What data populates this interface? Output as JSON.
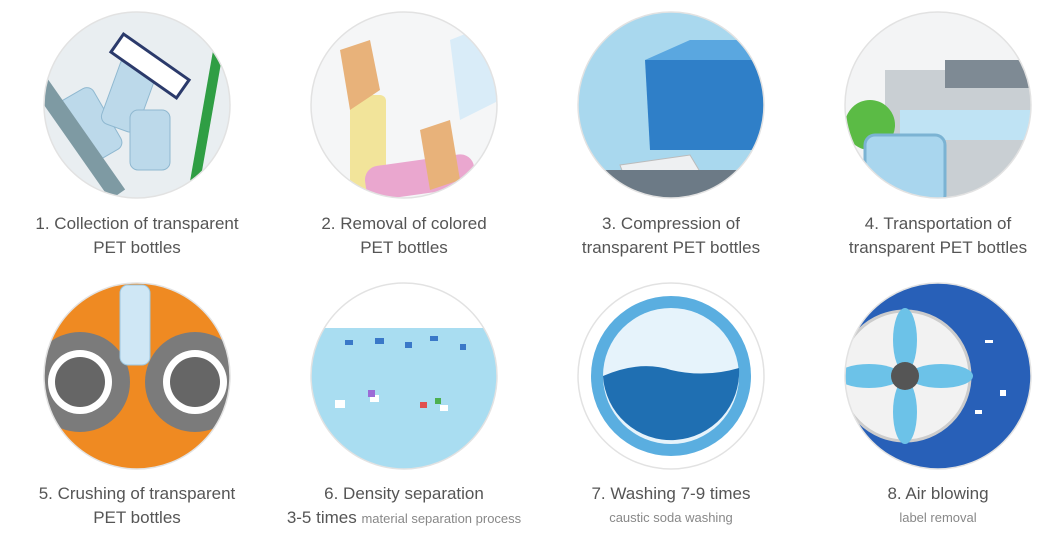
{
  "steps": [
    {
      "lines": [
        "1. Collection of transparent",
        "PET bottles"
      ]
    },
    {
      "lines": [
        "2. Removal of colored",
        "PET bottles"
      ]
    },
    {
      "lines": [
        "3. Compression of",
        "transparent PET bottles"
      ]
    },
    {
      "lines": [
        "4. Transportation of",
        "transparent PET bottles"
      ]
    },
    {
      "lines": [
        "5. Crushing of transparent",
        "PET bottles"
      ]
    },
    {
      "lines": [
        "6. Density separation",
        "3-5 times"
      ],
      "note": "material separation process"
    },
    {
      "lines": [
        "7. Washing 7-9 times"
      ],
      "note": "caustic soda washing"
    },
    {
      "lines": [
        "8. Air blowing"
      ],
      "note": "label removal"
    }
  ]
}
